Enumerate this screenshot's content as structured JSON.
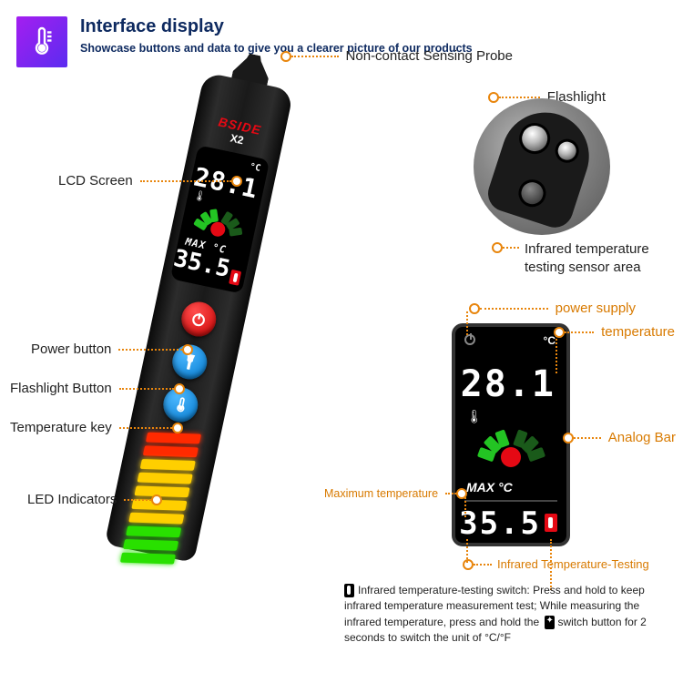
{
  "header": {
    "title": "Interface display",
    "subtitle": "Showcase buttons and data to give you a clearer picture of our products"
  },
  "brand": {
    "name": "BSIDE",
    "model": "X2"
  },
  "lcd": {
    "unit": "°C",
    "reading": "28.1",
    "max_label": "MAX °C",
    "max_reading": "35.5"
  },
  "dial_segments": [
    {
      "angle": -70,
      "color": "#23c423"
    },
    {
      "angle": -45,
      "color": "#23c423"
    },
    {
      "angle": -20,
      "color": "#23c423"
    },
    {
      "angle": 20,
      "color": "#1a5a1a"
    },
    {
      "angle": 45,
      "color": "#1a5a1a"
    },
    {
      "angle": 70,
      "color": "#1a5a1a"
    }
  ],
  "led_bars": [
    "#ff2a00",
    "#ff2a00",
    "#ffcf00",
    "#ffcf00",
    "#ffcf00",
    "#ffcf00",
    "#ffcf00",
    "#29e000",
    "#29e000",
    "#29e000"
  ],
  "callouts": {
    "lcd_screen": "LCD Screen",
    "power_button": "Power button",
    "flashlight_button": "Flashlight Button",
    "temperature_key": "Temperature key",
    "led_indicators": "LED Indicators",
    "probe": "Non-contact Sensing Probe",
    "flashlight": "Flashlight",
    "ir_sensor": "Infrared temperature testing sensor area",
    "power_supply": "power supply",
    "temperature": "temperature",
    "analog_bar": "Analog Bar",
    "max_temperature": "Maximum temperature",
    "ir_testing": "Infrared Temperature-Testing"
  },
  "footnote": {
    "part1": "Infrared temperature-testing switch: Press and hold to keep infrared temperature measurement test; While measuring the infrared temperature, press and hold the",
    "part2": "switch button for 2 seconds to switch the unit of °C/°F"
  },
  "colors": {
    "accent": "#e8850c",
    "heading": "#0e2a60"
  }
}
